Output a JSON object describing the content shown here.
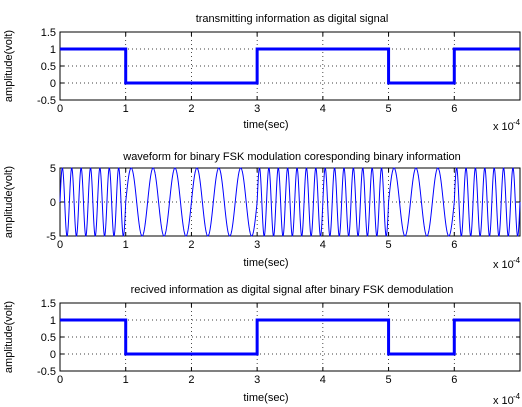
{
  "chart_data": [
    {
      "type": "line",
      "title": "transmitting information as digital signal",
      "xlabel": "time(sec)",
      "ylabel": "amplitude(volt)",
      "x_multiplier": "x 10",
      "x_exponent": "-4",
      "xlim": [
        0,
        7
      ],
      "ylim": [
        -0.5,
        1.5
      ],
      "xticks": [
        "0",
        "1",
        "2",
        "3",
        "4",
        "5",
        "6"
      ],
      "yticks": [
        "1.5",
        "1",
        "0.5",
        "0",
        "-0.5"
      ],
      "series": [
        {
          "values": [
            {
              "x": 0,
              "y": 1
            },
            {
              "x": 1,
              "y": 1
            },
            {
              "x": 1,
              "y": 0
            },
            {
              "x": 3,
              "y": 0
            },
            {
              "x": 3,
              "y": 1
            },
            {
              "x": 5,
              "y": 1
            },
            {
              "x": 5,
              "y": 0
            },
            {
              "x": 6,
              "y": 0
            },
            {
              "x": 6,
              "y": 1
            },
            {
              "x": 7,
              "y": 1
            }
          ]
        }
      ],
      "grid": "dotted",
      "line_color": "#0000ff"
    },
    {
      "type": "line",
      "title": "waveform for binary FSK modulation coresponding binary information",
      "xlabel": "time(sec)",
      "ylabel": "amplitude(volt)",
      "x_multiplier": "x 10",
      "x_exponent": "-4",
      "xlim": [
        0,
        7
      ],
      "ylim": [
        -5,
        5
      ],
      "xticks": [
        "0",
        "1",
        "2",
        "3",
        "4",
        "5",
        "6"
      ],
      "yticks": [
        "5",
        "0",
        "-5"
      ],
      "series": [
        {
          "amplitude": 5,
          "bits": [
            1,
            0,
            0,
            1,
            1,
            0,
            1
          ],
          "cycles_per_bit_high": 7,
          "cycles_per_bit_low": 3
        }
      ],
      "grid": "dotted",
      "line_color": "#0000ff"
    },
    {
      "type": "line",
      "title": "recived information as digital signal after binary FSK demodulation",
      "xlabel": "time(sec)",
      "ylabel": "amplitude(volt)",
      "x_multiplier": "x 10",
      "x_exponent": "-4",
      "xlim": [
        0,
        7
      ],
      "ylim": [
        -0.5,
        1.5
      ],
      "xticks": [
        "0",
        "1",
        "2",
        "3",
        "4",
        "5",
        "6"
      ],
      "yticks": [
        "1.5",
        "1",
        "0.5",
        "0",
        "-0.5"
      ],
      "series": [
        {
          "values": [
            {
              "x": 0,
              "y": 1
            },
            {
              "x": 1,
              "y": 1
            },
            {
              "x": 1,
              "y": 0
            },
            {
              "x": 3,
              "y": 0
            },
            {
              "x": 3,
              "y": 1
            },
            {
              "x": 5,
              "y": 1
            },
            {
              "x": 5,
              "y": 0
            },
            {
              "x": 6,
              "y": 0
            },
            {
              "x": 6,
              "y": 1
            },
            {
              "x": 7,
              "y": 1
            }
          ]
        }
      ],
      "grid": "dotted",
      "line_color": "#0000ff"
    }
  ]
}
